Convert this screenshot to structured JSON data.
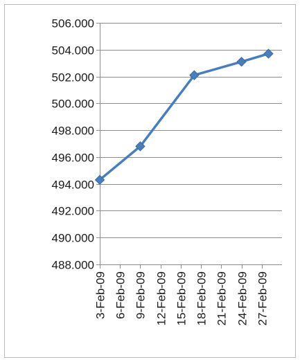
{
  "chart_data": {
    "type": "line",
    "title": "",
    "xlabel": "",
    "ylabel": "",
    "x_dates": [
      "2009-02-03",
      "2009-02-09",
      "2009-02-17",
      "2009-02-24",
      "2009-02-28"
    ],
    "x": [
      "3-Feb-09",
      "9-Feb-09",
      "17-Feb-09",
      "24-Feb-09",
      "28-Feb-09"
    ],
    "series": [
      {
        "values": [
          494.3,
          496.8,
          502.1,
          503.1,
          503.7
        ]
      }
    ],
    "ylim": [
      488,
      506
    ],
    "ytick_values": [
      506,
      504,
      502,
      500,
      498,
      496,
      494,
      492,
      490,
      488
    ],
    "yticks": [
      "506.000",
      "504.000",
      "502.000",
      "500.000",
      "498.000",
      "496.000",
      "494.000",
      "492.000",
      "490.000",
      "488.000"
    ],
    "xlim_dates": [
      "2009-02-03",
      "2009-03-02"
    ],
    "xticks": [
      "3-Feb-09",
      "6-Feb-09",
      "9-Feb-09",
      "12-Feb-09",
      "15-Feb-09",
      "18-Feb-09",
      "21-Feb-09",
      "24-Feb-09",
      "27-Feb-09"
    ],
    "grid": true,
    "legend": "none",
    "line_color": "#4a7ebb"
  }
}
